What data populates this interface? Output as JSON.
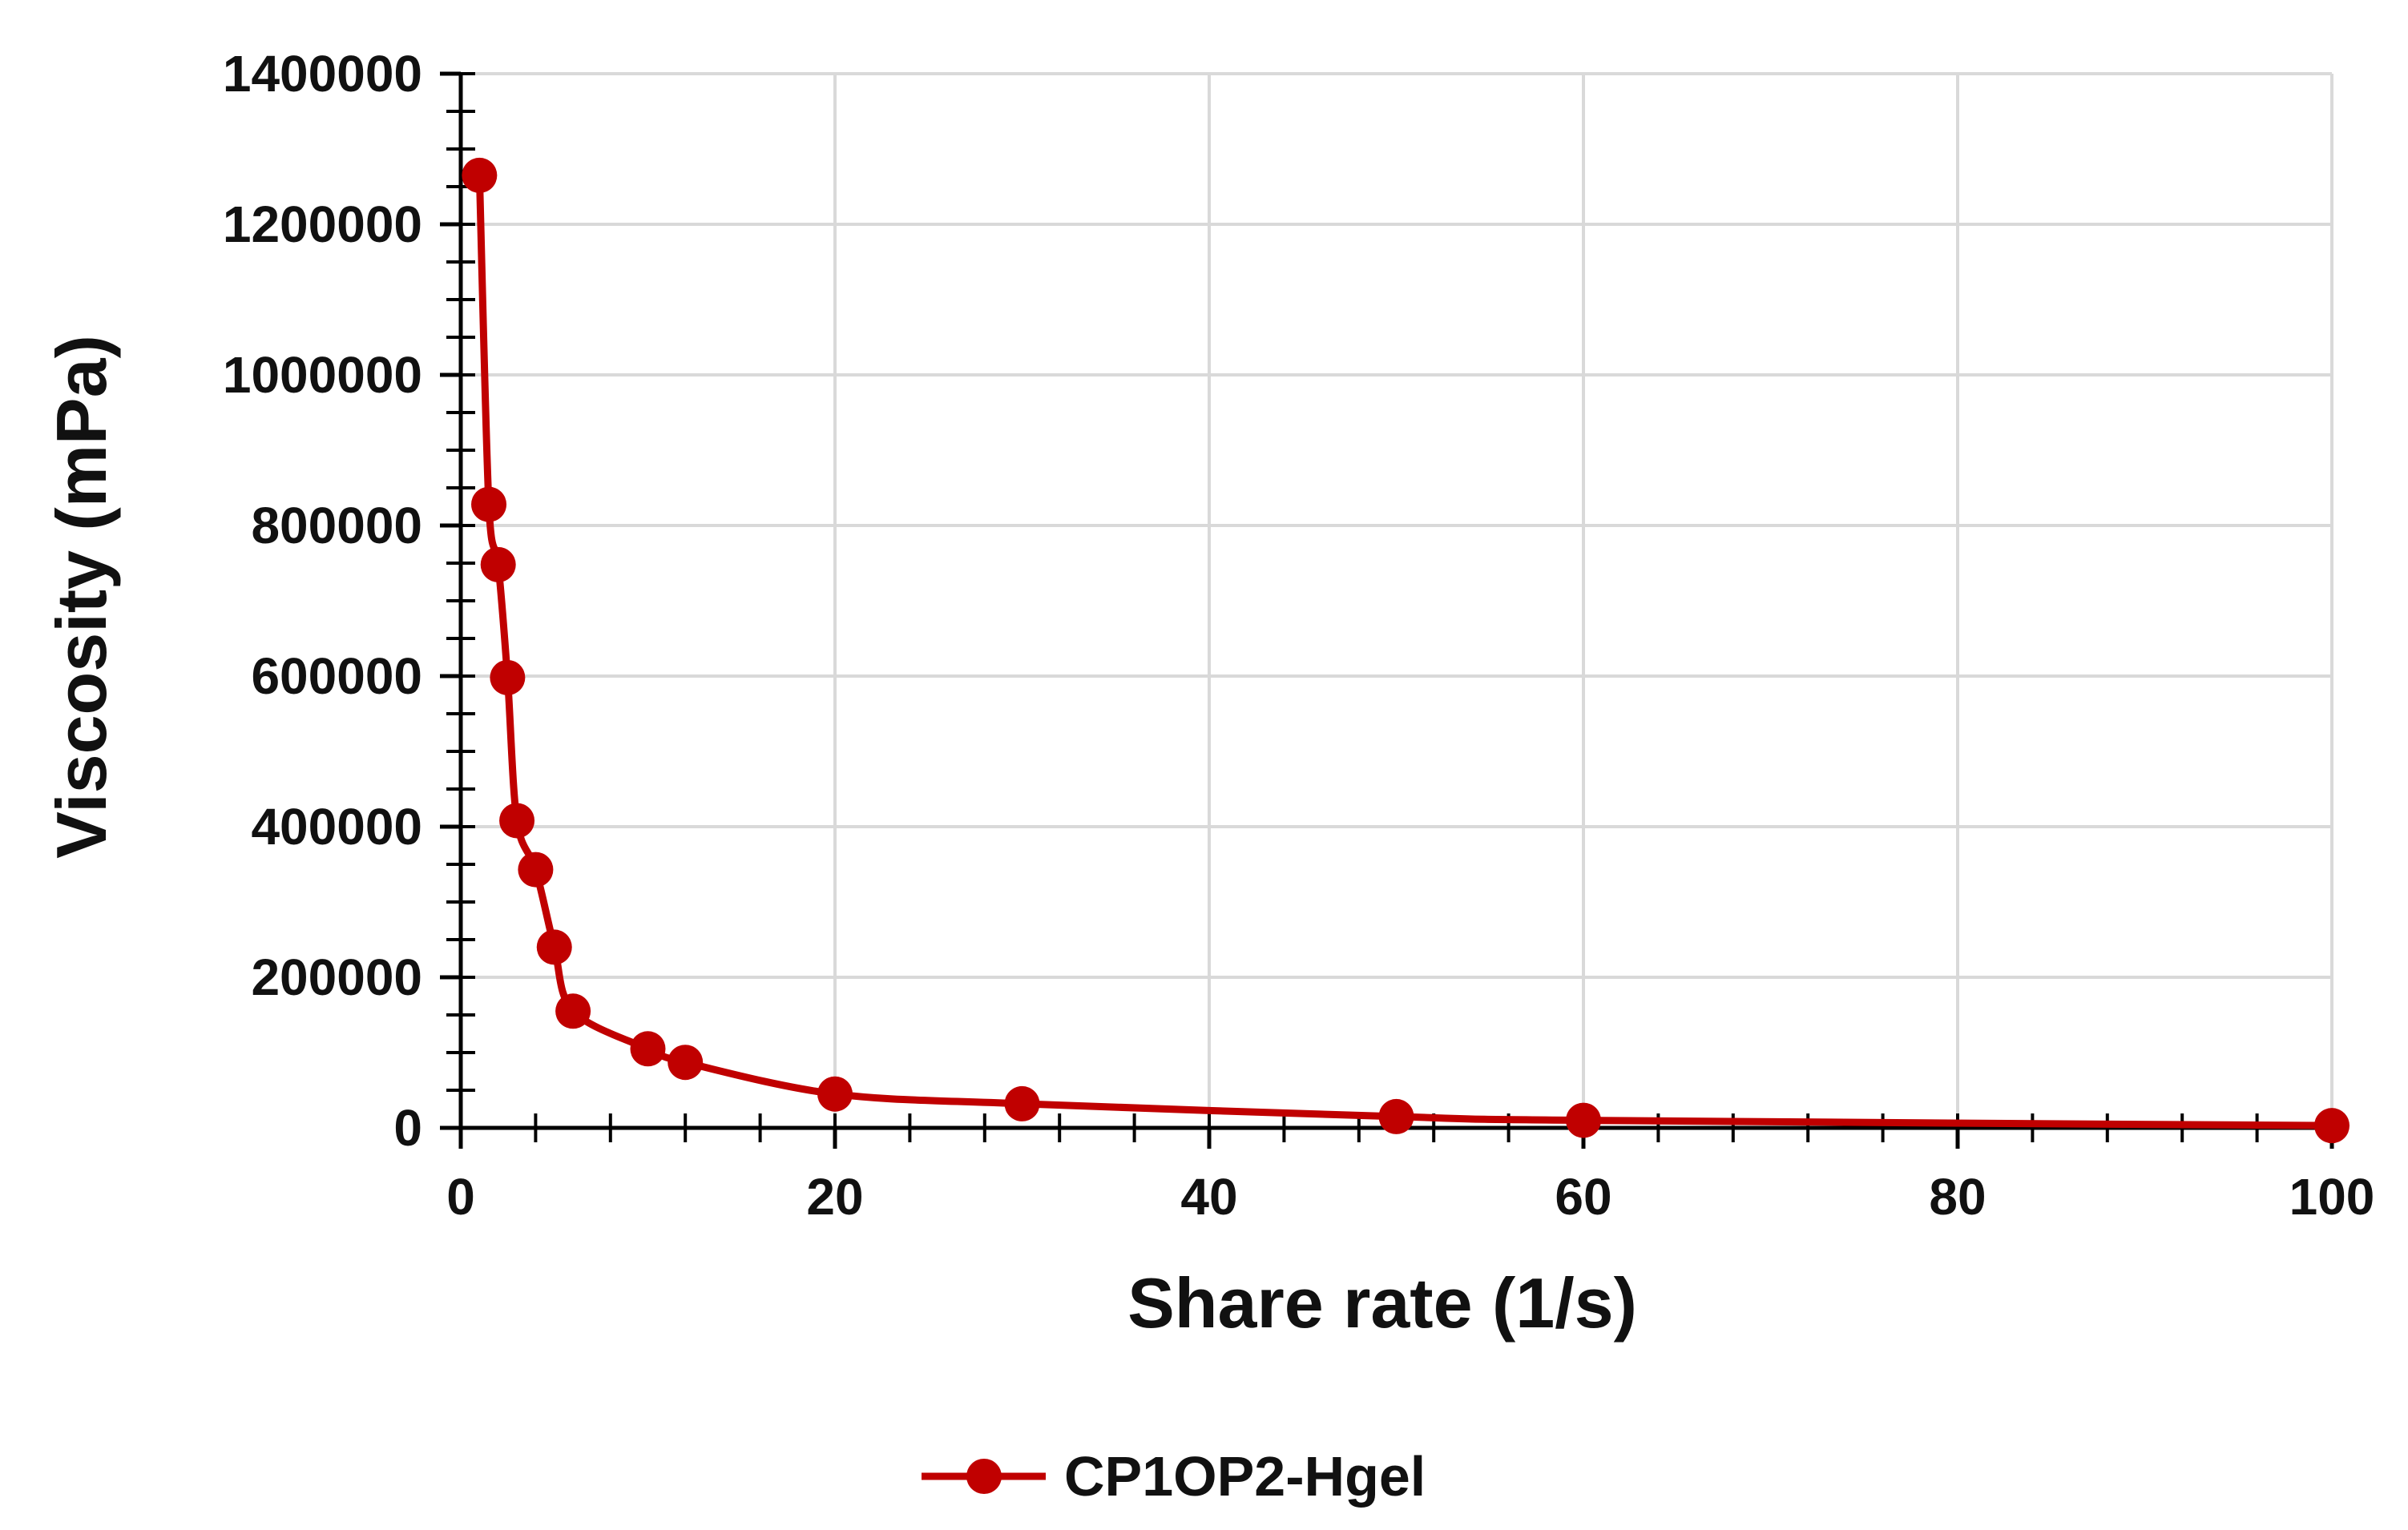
{
  "chart_data": {
    "type": "line",
    "title": "",
    "xlabel": "Share rate (1/s)",
    "ylabel": "Viscosity (mPa)",
    "xlim": [
      0,
      100
    ],
    "ylim": [
      0,
      1400000
    ],
    "x_ticks": [
      0,
      20,
      40,
      60,
      80,
      100
    ],
    "y_ticks": [
      0,
      200000,
      400000,
      600000,
      800000,
      1000000,
      1200000,
      1400000
    ],
    "grid": true,
    "legend_position": "bottom-center",
    "series": [
      {
        "name": "CP1OP2-Hgel",
        "color": "#C00000",
        "x": [
          1,
          1.5,
          2,
          2.5,
          3,
          4,
          5,
          6,
          10,
          12,
          20,
          30,
          50,
          60,
          100
        ],
        "y": [
          1265000,
          828000,
          748000,
          598000,
          408000,
          343000,
          240000,
          155000,
          105000,
          87000,
          45000,
          32000,
          15000,
          10000,
          3000
        ]
      }
    ]
  }
}
